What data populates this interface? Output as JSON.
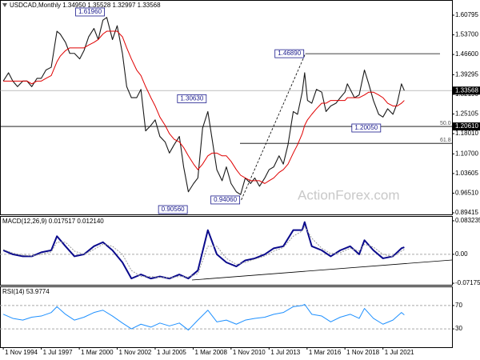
{
  "chart_data": [
    {
      "type": "line",
      "title": "USDCAD,Monthly  1.34950 1.35528 1.32997 1.33568",
      "watermark": "ActionForex.com",
      "x": [
        1994.83,
        1995.2,
        1995.5,
        1995.83,
        1996.2,
        1996.5,
        1996.83,
        1997.2,
        1997.5,
        1997.83,
        1998.2,
        1998.6,
        1998.83,
        1999.2,
        1999.5,
        1999.83,
        2000.2,
        2000.5,
        2000.83,
        2001.2,
        2001.5,
        2001.83,
        2002.1,
        2002.5,
        2002.83,
        2003.2,
        2003.5,
        2003.83,
        2004.2,
        2004.5,
        2004.83,
        2005.2,
        2005.5,
        2005.83,
        2006.2,
        2006.5,
        2006.83,
        2007.2,
        2007.5,
        2007.83,
        2008.2,
        2008.5,
        2008.83,
        2009.2,
        2009.5,
        2009.83,
        2010.2,
        2010.5,
        2010.83,
        2011.2,
        2011.5,
        2011.83,
        2012.2,
        2012.5,
        2012.83,
        2013.2,
        2013.5,
        2013.83,
        2014.2,
        2014.5,
        2014.83,
        2015.2,
        2015.5,
        2015.83,
        2016.0,
        2016.2,
        2016.5,
        2016.83,
        2017.2,
        2017.5,
        2017.83,
        2018.2,
        2018.5,
        2018.83,
        2019.0,
        2019.5,
        2019.83,
        2020.2,
        2020.5,
        2020.83,
        2021.2,
        2021.5,
        2021.83,
        2022.2,
        2022.5,
        2022.8,
        2023.0
      ],
      "series": [
        {
          "color": "#1a1a1a",
          "values": [
            1.37,
            1.4,
            1.37,
            1.35,
            1.37,
            1.37,
            1.35,
            1.38,
            1.38,
            1.41,
            1.42,
            1.55,
            1.54,
            1.51,
            1.47,
            1.47,
            1.45,
            1.48,
            1.53,
            1.56,
            1.52,
            1.59,
            1.6,
            1.52,
            1.57,
            1.47,
            1.35,
            1.31,
            1.31,
            1.34,
            1.19,
            1.21,
            1.23,
            1.17,
            1.15,
            1.11,
            1.14,
            1.17,
            1.06,
            0.97,
            1.0,
            1.02,
            1.2,
            1.26,
            1.16,
            1.05,
            1.01,
            1.06,
            1.0,
            0.97,
            0.96,
            1.02,
            1.0,
            1.02,
            0.99,
            1.02,
            1.05,
            1.06,
            1.1,
            1.07,
            1.14,
            1.26,
            1.25,
            1.33,
            1.4,
            1.3,
            1.29,
            1.34,
            1.33,
            1.26,
            1.28,
            1.29,
            1.31,
            1.33,
            1.36,
            1.31,
            1.32,
            1.41,
            1.36,
            1.3,
            1.25,
            1.24,
            1.27,
            1.25,
            1.29,
            1.36,
            1.33568
          ]
        },
        {
          "color": "#e00000",
          "values": [
            1.37,
            1.37,
            1.37,
            1.37,
            1.37,
            1.37,
            1.36,
            1.37,
            1.37,
            1.38,
            1.39,
            1.44,
            1.46,
            1.48,
            1.49,
            1.49,
            1.49,
            1.49,
            1.5,
            1.51,
            1.52,
            1.54,
            1.55,
            1.55,
            1.55,
            1.53,
            1.49,
            1.45,
            1.41,
            1.39,
            1.35,
            1.31,
            1.28,
            1.24,
            1.21,
            1.18,
            1.16,
            1.15,
            1.13,
            1.1,
            1.07,
            1.05,
            1.07,
            1.1,
            1.11,
            1.11,
            1.1,
            1.1,
            1.08,
            1.05,
            1.03,
            1.02,
            1.01,
            1.01,
            1.01,
            1.0,
            1.01,
            1.02,
            1.04,
            1.05,
            1.07,
            1.11,
            1.14,
            1.18,
            1.21,
            1.23,
            1.25,
            1.27,
            1.29,
            1.29,
            1.3,
            1.3,
            1.3,
            1.3,
            1.31,
            1.31,
            1.31,
            1.32,
            1.33,
            1.33,
            1.32,
            1.31,
            1.29,
            1.28,
            1.28,
            1.29,
            1.3
          ]
        }
      ],
      "xlim": [
        1994.6,
        2026.35
      ],
      "ylim": [
        0.8884,
        1.6571
      ],
      "yticks": [
        1.60795,
        {
          "value": 1.537,
          "label": "1.53700"
        },
        {
          "value": 1.466,
          "label": "1.46600"
        },
        1.39295,
        {
          "value": 1.3219,
          "label": "1.32190"
        },
        1.25105,
        {
          "value": 1.1801,
          "label": "1.18010"
        },
        {
          "value": 1.107,
          "label": "1.10700"
        },
        1.03605,
        {
          "value": 0.9651,
          "label": "0.96510"
        },
        0.89415
      ],
      "price_labels": [
        1.33568,
        {
          "value": 1.2061,
          "label": "1.20610"
        }
      ],
      "annotations": [
        {
          "value": 1.6196,
          "label": "1.61960",
          "x": 2002.05
        },
        {
          "value": 1.4689,
          "label": "1.46890",
          "x": 2016.05
        },
        {
          "value": 1.3063,
          "label": "1.30630",
          "x": 2009.2
        },
        {
          "value": 0.9056,
          "label": "0.90560",
          "x": 2007.87
        },
        {
          "value": 0.9406,
          "label": "0.94060",
          "x": 2011.55
        },
        {
          "value": 1.2005,
          "label": "1.20050",
          "x": 2021.45
        }
      ],
      "fib_levels": [
        {
          "value": 1.2061,
          "label": "50.0"
        },
        {
          "value": 1.145,
          "label": "61.8"
        }
      ]
    },
    {
      "type": "line",
      "title": "MACD(12,26,9) 0.017517 0.012140",
      "x": [
        1994.83,
        1995.5,
        1996.2,
        1996.83,
        1997.5,
        1998.2,
        1998.6,
        1999.2,
        1999.83,
        2000.5,
        2001.2,
        2001.83,
        2002.5,
        2003.2,
        2003.83,
        2004.5,
        2005.2,
        2005.83,
        2006.5,
        2007.2,
        2007.83,
        2008.5,
        2009.2,
        2009.83,
        2010.5,
        2011.2,
        2011.83,
        2012.5,
        2013.2,
        2013.83,
        2014.5,
        2015.2,
        2015.83,
        2016.0,
        2016.5,
        2017.2,
        2017.83,
        2018.5,
        2019.2,
        2019.83,
        2020.2,
        2020.83,
        2021.5,
        2022.2,
        2022.8,
        2023.0
      ],
      "series": [
        {
          "color": "#0a0a8c",
          "values": [
            0.01,
            0.0,
            -0.005,
            -0.005,
            0.005,
            0.01,
            0.045,
            0.02,
            -0.005,
            0.0,
            0.02,
            0.03,
            0.01,
            -0.02,
            -0.06,
            -0.05,
            -0.06,
            -0.055,
            -0.06,
            -0.05,
            -0.06,
            -0.04,
            0.06,
            0.0,
            -0.02,
            -0.03,
            -0.015,
            -0.01,
            0.0,
            0.015,
            0.02,
            0.06,
            0.06,
            0.08,
            0.02,
            0.01,
            -0.005,
            0.01,
            0.02,
            0.0,
            0.035,
            0.01,
            -0.01,
            -0.005,
            0.015,
            0.017517
          ]
        },
        {
          "color": "#9a9a9a",
          "values": [
            0.012,
            0.003,
            -0.002,
            -0.004,
            0.0,
            0.006,
            0.03,
            0.03,
            0.008,
            0.0,
            0.012,
            0.025,
            0.02,
            0.0,
            -0.04,
            -0.055,
            -0.055,
            -0.057,
            -0.058,
            -0.055,
            -0.056,
            -0.048,
            0.02,
            0.02,
            -0.01,
            -0.025,
            -0.02,
            -0.012,
            -0.004,
            0.008,
            0.017,
            0.045,
            0.058,
            0.07,
            0.04,
            0.015,
            0.002,
            0.004,
            0.015,
            0.008,
            0.025,
            0.018,
            0.0,
            -0.006,
            0.008,
            0.01214
          ]
        }
      ],
      "xlim": [
        1994.6,
        2026.35
      ],
      "ylim": [
        -0.0756,
        0.0931
      ],
      "yticks": [
        0.083235,
        {
          "value": 0,
          "label": "0.00"
        },
        -0.071752
      ]
    },
    {
      "type": "line",
      "title": "RSI(14) 53.9774",
      "x": [
        1994.83,
        1995.5,
        1996.2,
        1996.83,
        1997.5,
        1998.2,
        1998.6,
        1999.2,
        1999.83,
        2000.5,
        2001.2,
        2001.83,
        2002.5,
        2003.2,
        2003.83,
        2004.5,
        2005.2,
        2005.83,
        2006.5,
        2007.2,
        2007.83,
        2008.5,
        2009.2,
        2009.83,
        2010.5,
        2011.2,
        2011.83,
        2012.5,
        2013.2,
        2013.83,
        2014.5,
        2015.2,
        2015.83,
        2016.0,
        2016.5,
        2017.2,
        2017.83,
        2018.5,
        2019.2,
        2019.83,
        2020.2,
        2020.83,
        2021.5,
        2022.2,
        2022.8,
        2023.0
      ],
      "series": [
        {
          "color": "#1e90ff",
          "values": [
            55,
            48,
            45,
            50,
            52,
            58,
            68,
            55,
            45,
            50,
            58,
            62,
            52,
            40,
            30,
            38,
            33,
            40,
            35,
            40,
            28,
            45,
            62,
            42,
            45,
            38,
            45,
            48,
            50,
            55,
            58,
            68,
            70,
            72,
            55,
            52,
            42,
            50,
            55,
            48,
            65,
            48,
            38,
            45,
            58,
            53.9774
          ]
        }
      ],
      "xlim": [
        1994.6,
        2026.35
      ],
      "ylim": [
        0,
        100
      ],
      "yticks": [
        70,
        30
      ],
      "xticks": [
        {
          "value": 1994.83,
          "label": "1 Nov 1994"
        },
        {
          "value": 1997.5,
          "label": "1 Jul 1997"
        },
        {
          "value": 2000.17,
          "label": "1 Mar 2000"
        },
        {
          "value": 2002.83,
          "label": "1 Nov 2002"
        },
        {
          "value": 2005.5,
          "label": "1 Jul 2005"
        },
        {
          "value": 2008.17,
          "label": "1 Mar 2008"
        },
        {
          "value": 2010.83,
          "label": "1 Nov 2010"
        },
        {
          "value": 2013.5,
          "label": "1 Jul 2013"
        },
        {
          "value": 2016.17,
          "label": "1 Mar 2016"
        },
        {
          "value": 2018.83,
          "label": "1 Nov 2018"
        },
        {
          "value": 2021.5,
          "label": "1 Jul 2021"
        }
      ]
    }
  ]
}
